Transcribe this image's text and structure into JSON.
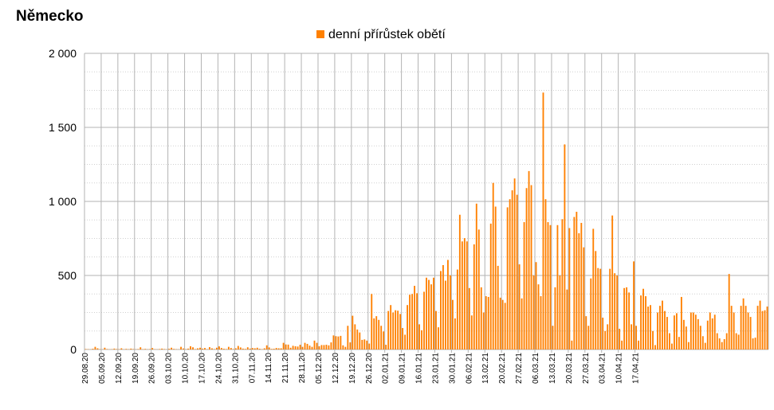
{
  "page": {
    "title": "Německo"
  },
  "chart_data": {
    "type": "bar",
    "title": "Německo",
    "xlabel": "",
    "ylabel": "",
    "ylim": [
      0,
      2000
    ],
    "yticks": [
      0,
      500,
      1000,
      1500,
      2000
    ],
    "ytick_labels": [
      "0",
      "500",
      "1 000",
      "1 500",
      "2 000"
    ],
    "grid": "horizontal major + minor dotted, vertical at date ticks",
    "legend": "top-center",
    "color": "#ff8000",
    "x_start": "29.08.20",
    "x_end": "23.04.21",
    "tick_labels": [
      "29.08.20",
      "05.09.20",
      "12.09.20",
      "19.09.20",
      "26.09.20",
      "03.10.20",
      "10.10.20",
      "17.10.20",
      "24.10.20",
      "31.10.20",
      "07.11.20",
      "14.11.20",
      "21.11.20",
      "28.11.20",
      "05.12.20",
      "12.12.20",
      "19.12.20",
      "26.12.20",
      "02.01.21",
      "09.01.21",
      "16.01.21",
      "23.01.21",
      "30.01.21",
      "06.02.21",
      "13.02.21",
      "20.02.21",
      "27.02.21",
      "06.03.21",
      "13.03.21",
      "20.03.21",
      "27.03.21",
      "03.04.21",
      "10.04.21",
      "17.04.21"
    ],
    "series": [
      {
        "name": "denní přírůstek obětí",
        "values": [
          3,
          2,
          1,
          5,
          18,
          8,
          2,
          1,
          12,
          3,
          1,
          2,
          6,
          3,
          2,
          8,
          1,
          4,
          2,
          6,
          3,
          1,
          3,
          15,
          2,
          4,
          1,
          3,
          10,
          2,
          1,
          3,
          6,
          3,
          1,
          5,
          12,
          4,
          2,
          1,
          18,
          7,
          2,
          6,
          22,
          15,
          3,
          8,
          12,
          6,
          10,
          2,
          16,
          8,
          3,
          12,
          21,
          10,
          5,
          3,
          18,
          10,
          3,
          8,
          24,
          14,
          6,
          4,
          15,
          6,
          10,
          8,
          12,
          5,
          2,
          8,
          28,
          14,
          4,
          5,
          10,
          8,
          8,
          45,
          34,
          33,
          12,
          25,
          22,
          20,
          32,
          18,
          45,
          38,
          26,
          18,
          60,
          45,
          22,
          30,
          30,
          32,
          28,
          48,
          95,
          90,
          88,
          92,
          28,
          18,
          160,
          48,
          228,
          170,
          135,
          115,
          65,
          68,
          60,
          40,
          375,
          210,
          225,
          200,
          160,
          122,
          32,
          260,
          300,
          250,
          265,
          262,
          240,
          145,
          100,
          300,
          370,
          375,
          430,
          380,
          170,
          130,
          390,
          485,
          470,
          440,
          485,
          260,
          150,
          530,
          570,
          465,
          605,
          500,
          335,
          210,
          540,
          910,
          730,
          752,
          730,
          415,
          230,
          710,
          985,
          810,
          420,
          250,
          360,
          355,
          850,
          1125,
          965,
          565,
          350,
          335,
          315,
          960,
          1015,
          1075,
          1155,
          1045,
          575,
          345,
          860,
          1090,
          1205,
          1110,
          500,
          590,
          440,
          360,
          1735,
          1015,
          860,
          840,
          160,
          420,
          840,
          500,
          880,
          1385,
          405,
          820,
          60,
          895,
          930,
          785,
          855,
          690,
          225,
          160,
          480,
          815,
          665,
          550,
          545,
          215,
          125,
          170,
          545,
          905,
          515,
          500,
          140,
          60,
          415,
          420,
          385,
          170,
          595,
          160,
          60,
          365,
          410,
          360,
          290,
          300,
          125,
          30,
          250,
          295,
          330,
          260,
          220,
          110,
          40,
          230,
          245,
          85,
          355,
          200,
          155,
          50,
          250,
          250,
          235,
          205,
          160,
          90,
          45,
          195,
          250,
          210,
          235,
          110,
          75,
          50,
          70,
          110,
          510,
          295,
          250,
          110,
          100,
          295,
          345,
          295,
          250,
          220,
          75,
          80,
          295,
          330,
          260,
          265,
          290
        ]
      }
    ]
  }
}
